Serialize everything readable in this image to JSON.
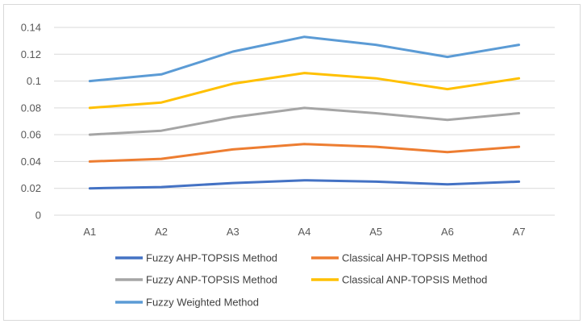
{
  "chart_data": {
    "type": "line",
    "categories": [
      "A1",
      "A2",
      "A3",
      "A4",
      "A5",
      "A6",
      "A7"
    ],
    "ylim": [
      0,
      0.14
    ],
    "yticks": [
      "0",
      "0.02",
      "0.04",
      "0.06",
      "0.08",
      "0.1",
      "0.12",
      "0.14"
    ],
    "grid": true,
    "legend_position": "bottom",
    "series": [
      {
        "name": "Fuzzy AHP-TOPSIS Method",
        "color": "#4472C4",
        "values": [
          0.02,
          0.021,
          0.024,
          0.026,
          0.025,
          0.023,
          0.025
        ]
      },
      {
        "name": "Classical AHP-TOPSIS Method",
        "color": "#ED7D31",
        "values": [
          0.04,
          0.042,
          0.049,
          0.053,
          0.051,
          0.047,
          0.051
        ]
      },
      {
        "name": "Fuzzy ANP-TOPSIS Method",
        "color": "#A5A5A5",
        "values": [
          0.06,
          0.063,
          0.073,
          0.08,
          0.076,
          0.071,
          0.076
        ]
      },
      {
        "name": "Classical ANP-TOPSIS Method",
        "color": "#FFC000",
        "values": [
          0.08,
          0.084,
          0.098,
          0.106,
          0.102,
          0.094,
          0.102
        ]
      },
      {
        "name": "Fuzzy Weighted Method",
        "color": "#5B9BD5",
        "values": [
          0.1,
          0.105,
          0.122,
          0.133,
          0.127,
          0.118,
          0.127
        ]
      }
    ]
  }
}
